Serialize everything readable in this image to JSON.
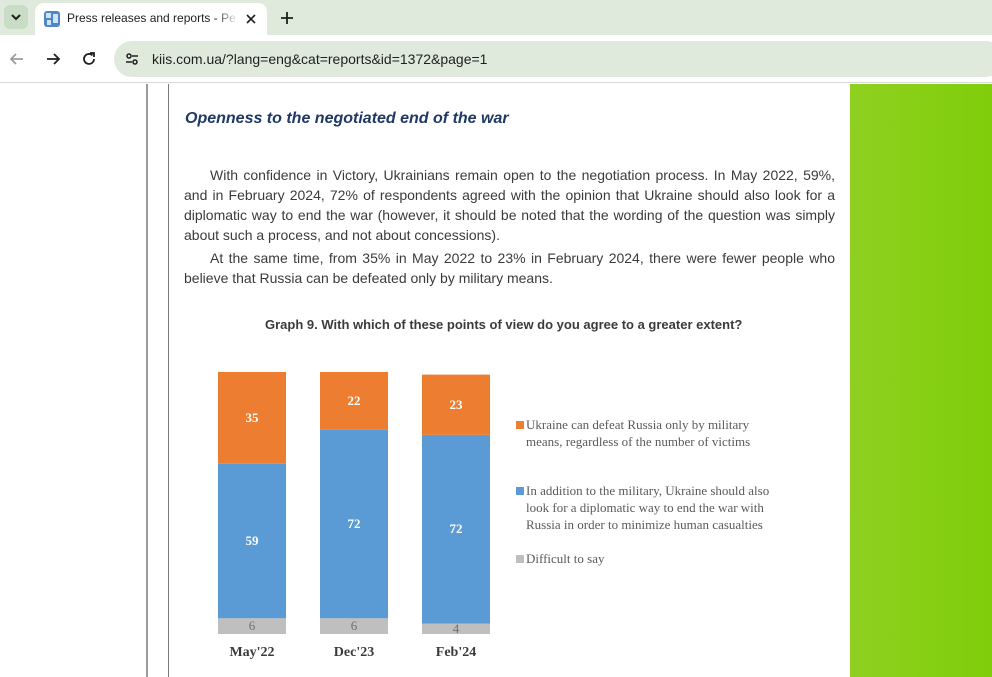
{
  "browser": {
    "tab_title": "Press releases and reports - Pe",
    "url": "kiis.com.ua/?lang=eng&cat=reports&id=1372&page=1"
  },
  "article": {
    "heading": "Openness to the negotiated end of the war",
    "paragraph1": "With confidence in Victory, Ukrainians remain open to the negotiation process. In May 2022, 59%, and in February 2024, 72% of respondents agreed with the opinion that Ukraine should also look for a diplomatic way to end the war (however, it should be noted that the wording of the question was simply about such a process, and not about concessions).",
    "paragraph2": "At the same time, from 35% in May 2022 to 23% in February 2024, there were fewer people who believe that Russia can be defeated only by military means.",
    "graph_title": "Graph 9. With which of these points of view do you agree to a greater extent?"
  },
  "colors": {
    "orange": "#ed7d31",
    "blue": "#5b9bd5",
    "gray": "#bfbfbf",
    "heading": "#1f3864",
    "green_sidebar": "#8bd019"
  },
  "chart_data": {
    "type": "bar",
    "stacked": true,
    "categories": [
      "May'22",
      "Dec'23",
      "Feb'24"
    ],
    "series": [
      {
        "name": "Difficult to say",
        "color": "#bfbfbf",
        "values": [
          6,
          6,
          4
        ]
      },
      {
        "name": "In addition to the military, Ukraine should also look for a diplomatic way to end the war with Russia in order to minimize human casualties",
        "color": "#5b9bd5",
        "values": [
          59,
          72,
          72
        ]
      },
      {
        "name": "Ukraine can defeat Russia only by military means, regardless of the number of victims",
        "color": "#ed7d31",
        "values": [
          35,
          22,
          23
        ]
      }
    ],
    "legend": [
      {
        "lines": [
          "Ukraine can defeat Russia only by military",
          "means, regardless of the number of victims"
        ],
        "color": "#ed7d31"
      },
      {
        "lines": [
          "In addition to the military, Ukraine should also",
          "look for a diplomatic way to end the war with",
          "Russia in order to minimize human casualties"
        ],
        "color": "#5b9bd5"
      },
      {
        "lines": [
          "Difficult to say"
        ],
        "color": "#bfbfbf"
      }
    ],
    "legend_position": "right",
    "grid": false
  }
}
